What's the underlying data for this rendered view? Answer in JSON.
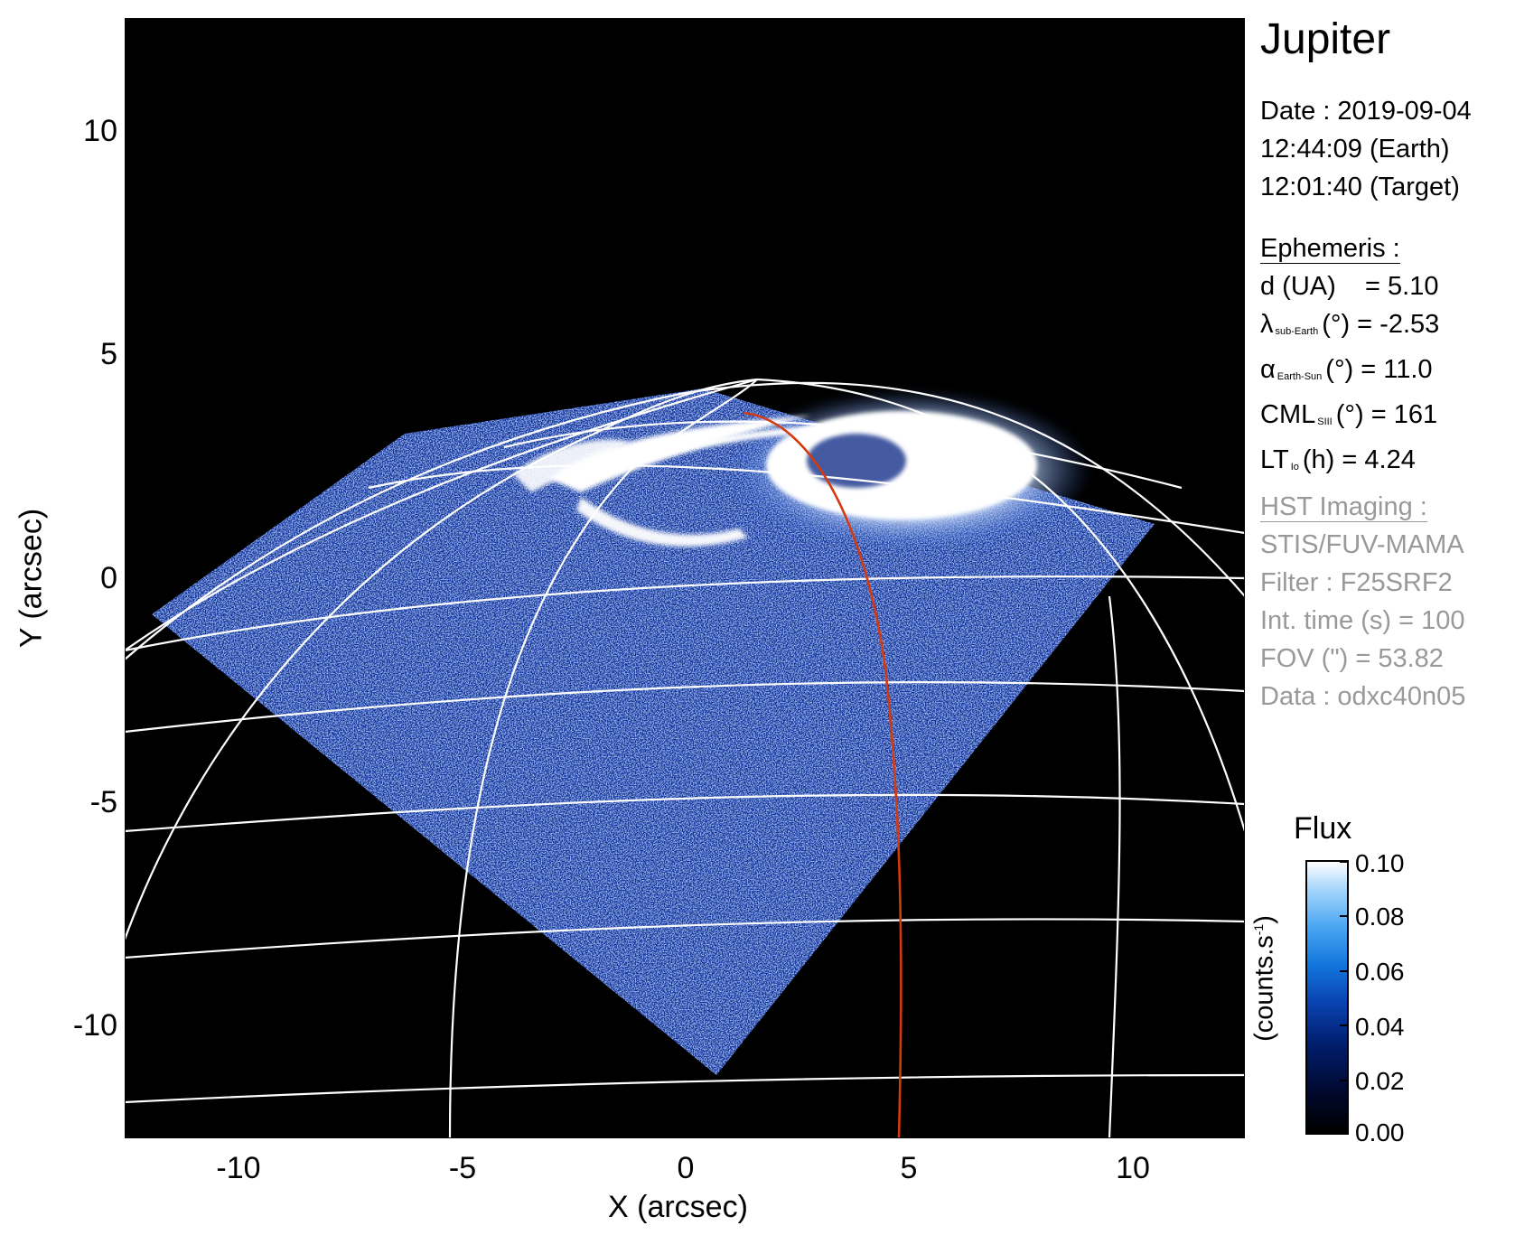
{
  "title": "Jupiter",
  "date": {
    "line1": "Date : 2019-09-04",
    "line2": "12:44:09 (Earth)",
    "line3": "12:01:40 (Target)"
  },
  "ephemeris": {
    "header": "Ephemeris :",
    "distance": "d (UA)    = 5.10",
    "lambda_symbol": "λ",
    "lambda_sub": "sub-Earth",
    "lambda_rest": "(°) = -2.53",
    "alpha_symbol": "α",
    "alpha_sub": "Earth-Sun",
    "alpha_rest": "(°) = 11.0",
    "cml_symbol": "CML",
    "cml_sub": "SIII",
    "cml_rest": "(°) = 161",
    "lt_symbol": "LT",
    "lt_sub": "Io",
    "lt_rest": "(h) = 4.24"
  },
  "imaging": {
    "header": "HST Imaging :",
    "instrument": "STIS/FUV-MAMA",
    "filter": "Filter : F25SRF2",
    "int_time": "Int. time (s) = 100",
    "fov": "FOV (\") = 53.82",
    "data": "Data : odxc40n05"
  },
  "colorbar": {
    "title": "Flux",
    "unit": "(counts.s",
    "unit_sup": "-1",
    "unit_close": ")",
    "ticks": [
      "0.10",
      "0.08",
      "0.06",
      "0.04",
      "0.02",
      "0.00"
    ],
    "range": [
      0.0,
      0.1
    ]
  },
  "axes": {
    "xlabel": "X (arcsec)",
    "ylabel": "Y (arcsec)",
    "x_ticks": [
      "-10",
      "-5",
      "0",
      "5",
      "10"
    ],
    "y_ticks": [
      "10",
      "5",
      "0",
      "-5",
      "-10"
    ],
    "x_range": [
      -12.5,
      12.5
    ],
    "y_range": [
      -12.5,
      12.5
    ]
  },
  "colors": {
    "grid": "#ffffff",
    "meridian_highlight": "#d43a10",
    "background": "#000000",
    "emission_dark": "#0a2ea0",
    "emission_bright": "#ffffff"
  }
}
